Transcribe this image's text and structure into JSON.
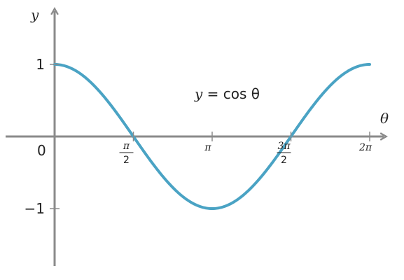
{
  "chart_data": {
    "type": "line",
    "function": "cos",
    "x_axis_label": "θ",
    "y_axis_label": "y",
    "xlim": [
      0,
      6.283185
    ],
    "ylim": [
      -1,
      1
    ],
    "grid": false,
    "series": [
      {
        "name": "y = cos θ",
        "values_function": "cos",
        "color": "#4aa3c4"
      }
    ],
    "x_ticks": [
      {
        "value": 1.570796,
        "num": "π",
        "den": "2"
      },
      {
        "value": 3.141593,
        "label": "π"
      },
      {
        "value": 4.712389,
        "num": "3π",
        "den": "2"
      },
      {
        "value": 6.283185,
        "label": "2π"
      }
    ],
    "y_ticks": [
      {
        "value": 1,
        "label": "1"
      },
      {
        "value": -1,
        "label": "−1"
      }
    ],
    "origin_label": "0",
    "annotation": {
      "text_italic": "y",
      "text_rest": " = cos θ"
    }
  }
}
